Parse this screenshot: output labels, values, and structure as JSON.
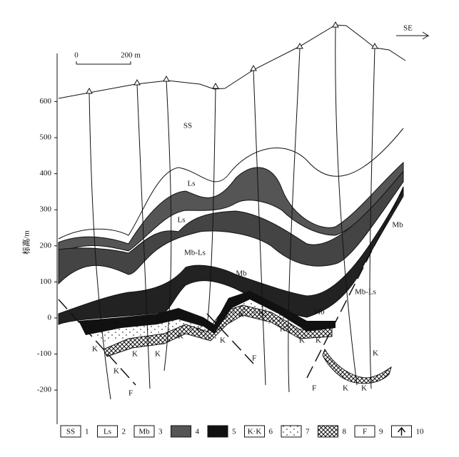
{
  "direction": "SE",
  "scale_bar": {
    "start": "0",
    "end": "200 m"
  },
  "axis": {
    "label": "标高/m",
    "ticks": [
      600,
      500,
      400,
      300,
      200,
      100,
      0,
      -100,
      -200
    ]
  },
  "labels": [
    "SS",
    "Ls",
    "Ls",
    "Mb-Ls",
    "Mb",
    "Mb",
    "Mb",
    "Mb-Ls",
    "Mb",
    "K",
    "K",
    "K",
    "K",
    "K",
    "K",
    "K",
    "K",
    "K",
    "K",
    "K",
    "K",
    "K",
    "K",
    "K",
    "F",
    "F",
    "F"
  ],
  "legend": [
    {
      "symbol": "SS",
      "number": "1"
    },
    {
      "symbol": "Ls",
      "number": "2"
    },
    {
      "symbol": "Mb",
      "number": "3"
    },
    {
      "number": "4"
    },
    {
      "number": "5"
    },
    {
      "symbol": "K·K",
      "number": "6"
    },
    {
      "number": "7"
    },
    {
      "number": "8"
    },
    {
      "symbol": "F",
      "number": "9"
    },
    {
      "number": "10"
    }
  ]
}
